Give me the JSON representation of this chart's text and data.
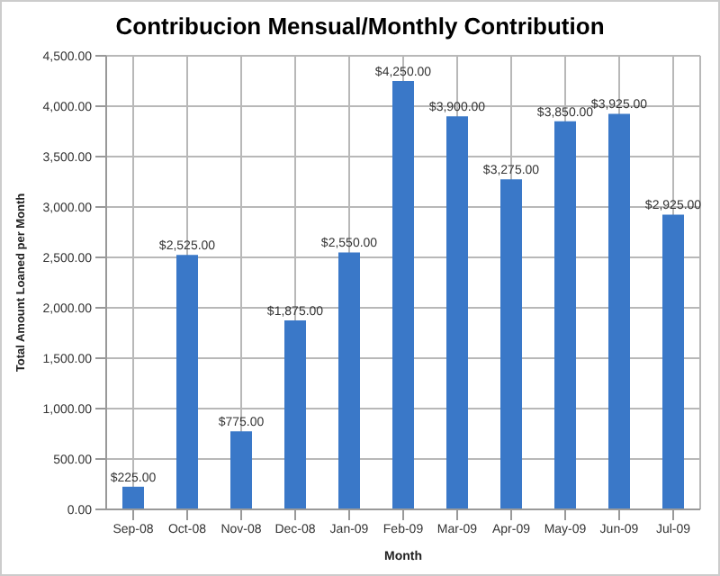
{
  "chart_data": {
    "type": "bar",
    "title": "Contribucion Mensual/Monthly Contribution",
    "xlabel": "Month",
    "ylabel": "Total Amount Loaned per Month",
    "categories": [
      "Sep-08",
      "Oct-08",
      "Nov-08",
      "Dec-08",
      "Jan-09",
      "Feb-09",
      "Mar-09",
      "Apr-09",
      "May-09",
      "Jun-09",
      "Jul-09"
    ],
    "values": [
      225,
      2525,
      775,
      1875,
      2550,
      4250,
      3900,
      3275,
      3850,
      3925,
      2925
    ],
    "value_labels": [
      "$225.00",
      "$2,525.00",
      "$775.00",
      "$1,875.00",
      "$2,550.00",
      "$4,250.00",
      "$3,900.00",
      "$3,275.00",
      "$3,850.00",
      "$3,925.00",
      "$2,925.00"
    ],
    "color": "#3a78c8",
    "ylim": [
      0,
      4500
    ],
    "yticks": [
      {
        "value": 0,
        "label": "0.00"
      },
      {
        "value": 500,
        "label": "500.00"
      },
      {
        "value": 1000,
        "label": "1,000.00"
      },
      {
        "value": 1500,
        "label": "1,500.00"
      },
      {
        "value": 2000,
        "label": "2,000.00"
      },
      {
        "value": 2500,
        "label": "2,500.00"
      },
      {
        "value": 3000,
        "label": "3,000.00"
      },
      {
        "value": 3500,
        "label": "3,500.00"
      },
      {
        "value": 4000,
        "label": "4,000.00"
      },
      {
        "value": 4500,
        "label": "4,500.00"
      }
    ],
    "grid": true,
    "legend": false
  }
}
